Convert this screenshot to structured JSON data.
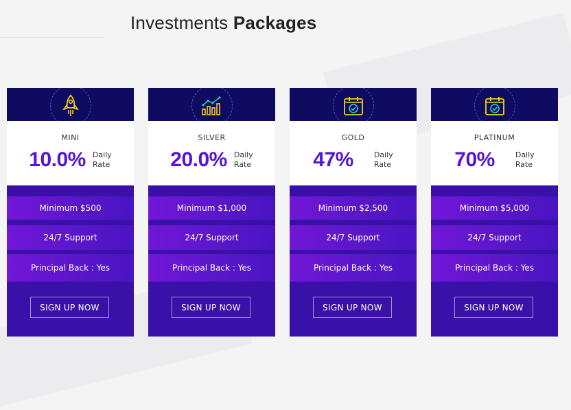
{
  "page": {
    "title_regular": "Investments",
    "title_bold": "Packages"
  },
  "colors": {
    "header_navy": "#0e0b61",
    "rate_purple": "#5514d6",
    "row_purple": "#6a16d2",
    "card_body": "#3a11a8",
    "icon_yellow": "#f3d21a",
    "icon_teal": "#2ccfc0"
  },
  "cards": [
    {
      "icon": "rocket-icon",
      "tier": "MINI",
      "rate": "10.0%",
      "rate_label_1": "Daily",
      "rate_label_2": "Rate",
      "minimum": "Minimum $500",
      "support": "24/7 Support",
      "principal": "Principal Back : Yes",
      "button": "SIGN UP NOW"
    },
    {
      "icon": "growth-chart-icon",
      "tier": "SILVER",
      "rate": "20.0%",
      "rate_label_1": "Daily",
      "rate_label_2": "Rate",
      "minimum": "Minimum $1,000",
      "support": "24/7 Support",
      "principal": "Principal Back : Yes",
      "button": "SIGN UP NOW"
    },
    {
      "icon": "calendar-check-icon",
      "tier": "GOLD",
      "rate": "47%",
      "rate_label_1": "Daily",
      "rate_label_2": "Rate",
      "minimum": "Minimum $2,500",
      "support": "24/7 Support",
      "principal": "Principal Back : Yes",
      "button": "SIGN UP NOW"
    },
    {
      "icon": "calendar-check-icon",
      "tier": "PLATINUM",
      "rate": "70%",
      "rate_label_1": "Daily",
      "rate_label_2": "Rate",
      "minimum": "Minimum $5,000",
      "support": "24/7 Support",
      "principal": "Principal Back : Yes",
      "button": "SIGN UP NOW"
    }
  ]
}
